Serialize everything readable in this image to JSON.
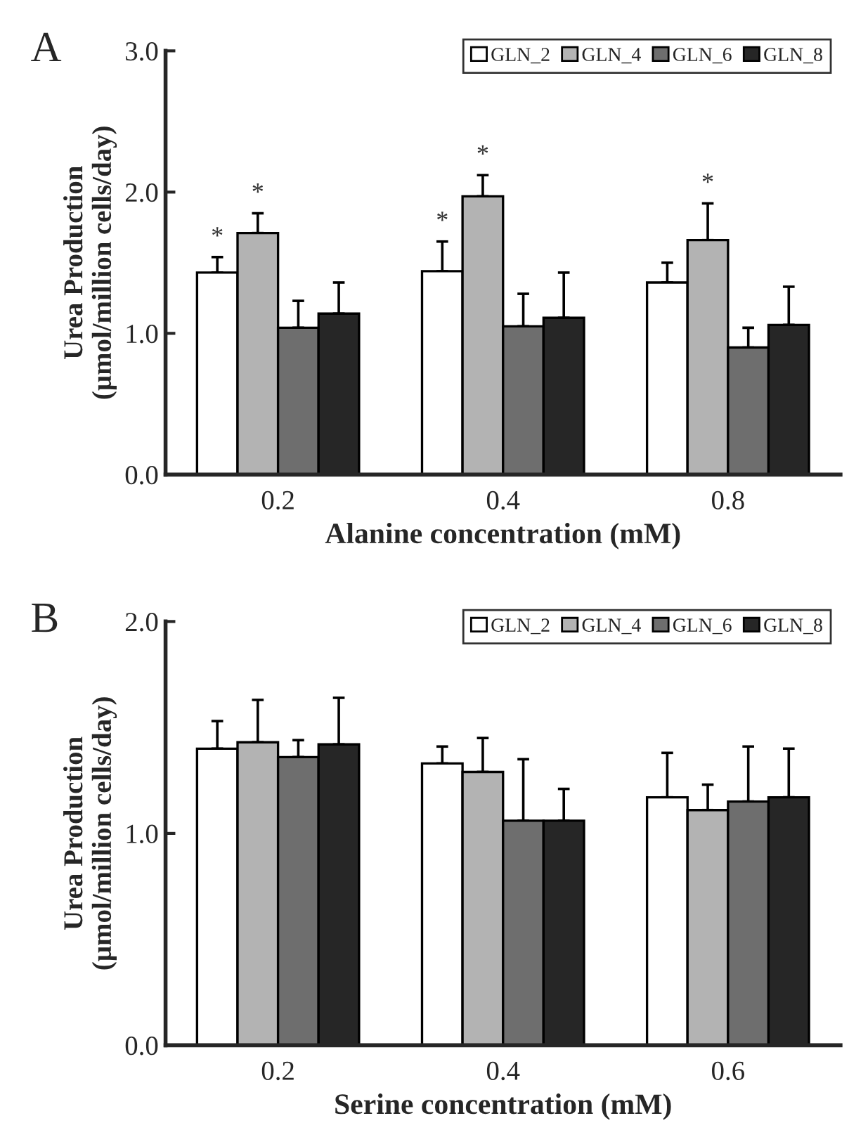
{
  "chart_data": [
    {
      "type": "bar",
      "xlabel": "Alanine concentration (mM)",
      "ylabel": "Urea Production\n(µmol/million cells/day)",
      "categories": [
        "0.2",
        "0.4",
        "0.8"
      ],
      "ylim": [
        0,
        3
      ],
      "yticks": [
        {
          "value": 0,
          "label": "0.0"
        },
        {
          "value": 1,
          "label": "1.0"
        },
        {
          "value": 2,
          "label": "2.0"
        },
        {
          "value": 3,
          "label": "3.0"
        }
      ],
      "legend": "top right",
      "grid": false,
      "series": [
        {
          "name": "GLN_2",
          "color": "#ffffff",
          "values": [
            1.43,
            1.44,
            1.36
          ],
          "errors": [
            [
              1.43,
              1.54
            ],
            [
              1.44,
              1.65
            ],
            [
              1.36,
              1.5
            ]
          ],
          "value_labels": [
            "*",
            "*",
            null
          ]
        },
        {
          "name": "GLN_4",
          "color": "#b3b3b3",
          "values": [
            1.71,
            1.97,
            1.66
          ],
          "errors": [
            [
              1.71,
              1.85
            ],
            [
              1.97,
              2.12
            ],
            [
              1.66,
              1.92
            ]
          ],
          "value_labels": [
            "*",
            "*",
            "*"
          ]
        },
        {
          "name": "GLN_6",
          "color": "#6e6e6e",
          "values": [
            1.04,
            1.05,
            0.9
          ],
          "errors": [
            [
              1.04,
              1.23
            ],
            [
              1.05,
              1.28
            ],
            [
              0.9,
              1.04
            ]
          ]
        },
        {
          "name": "GLN_8",
          "color": "#262626",
          "values": [
            1.14,
            1.11,
            1.06
          ],
          "errors": [
            [
              1.14,
              1.36
            ],
            [
              1.11,
              1.43
            ],
            [
              1.06,
              1.33
            ]
          ]
        }
      ],
      "annotations": [
        "A"
      ]
    },
    {
      "type": "bar",
      "xlabel": "Serine concentration (mM)",
      "ylabel": "Urea Production\n(µmol/million cells/day)",
      "categories": [
        "0.2",
        "0.4",
        "0.6"
      ],
      "ylim": [
        0,
        2
      ],
      "yticks": [
        {
          "value": 0,
          "label": "0.0"
        },
        {
          "value": 1,
          "label": "1.0"
        },
        {
          "value": 2,
          "label": "2.0"
        }
      ],
      "legend": "top right",
      "grid": false,
      "series": [
        {
          "name": "GLN_2",
          "color": "#ffffff",
          "values": [
            1.4,
            1.33,
            1.17
          ],
          "errors": [
            [
              1.4,
              1.53
            ],
            [
              1.33,
              1.41
            ],
            [
              1.17,
              1.38
            ]
          ]
        },
        {
          "name": "GLN_4",
          "color": "#b3b3b3",
          "values": [
            1.43,
            1.29,
            1.11
          ],
          "errors": [
            [
              1.43,
              1.63
            ],
            [
              1.29,
              1.45
            ],
            [
              1.11,
              1.23
            ]
          ]
        },
        {
          "name": "GLN_6",
          "color": "#6e6e6e",
          "values": [
            1.36,
            1.06,
            1.15
          ],
          "errors": [
            [
              1.36,
              1.44
            ],
            [
              1.06,
              1.35
            ],
            [
              1.15,
              1.41
            ]
          ]
        },
        {
          "name": "GLN_8",
          "color": "#262626",
          "values": [
            1.42,
            1.06,
            1.17
          ],
          "errors": [
            [
              1.42,
              1.64
            ],
            [
              1.06,
              1.21
            ],
            [
              1.17,
              1.4
            ]
          ]
        }
      ],
      "annotations": [
        "B"
      ]
    }
  ]
}
